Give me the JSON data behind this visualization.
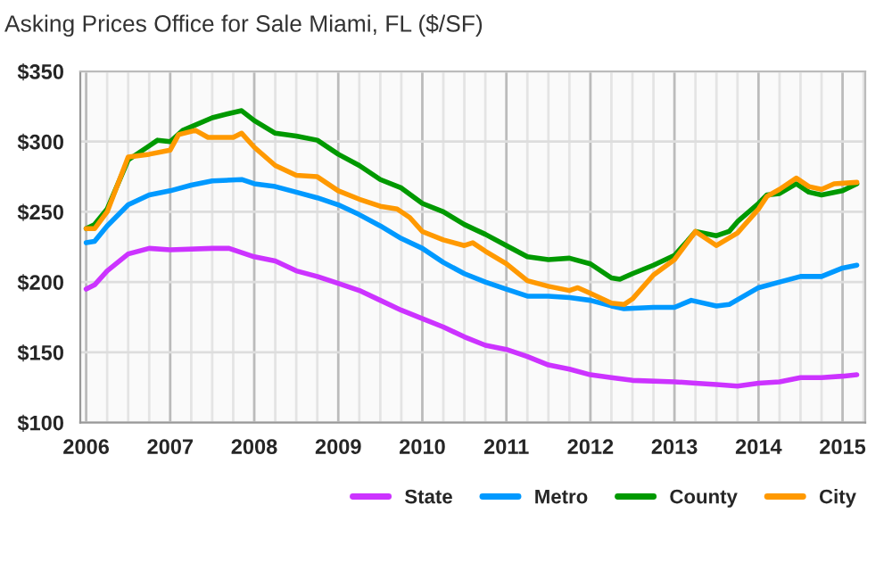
{
  "chart_data": {
    "type": "line",
    "title": "Asking Prices Office for Sale Miami, FL ($/SF)",
    "xlim": [
      2005.93,
      2015.27
    ],
    "xticks": [
      2006,
      {
        "value": 2006.25,
        "label": null
      },
      {
        "value": 2006.5,
        "label": null
      },
      {
        "value": 2006.75,
        "label": null
      },
      2007,
      {
        "value": 2007.25,
        "label": null
      },
      {
        "value": 2007.5,
        "label": null
      },
      {
        "value": 2007.75,
        "label": null
      },
      2008,
      {
        "value": 2008.25,
        "label": null
      },
      {
        "value": 2008.5,
        "label": null
      },
      {
        "value": 2008.75,
        "label": null
      },
      2009,
      {
        "value": 2009.25,
        "label": null
      },
      {
        "value": 2009.5,
        "label": null
      },
      {
        "value": 2009.75,
        "label": null
      },
      2010,
      {
        "value": 2010.25,
        "label": null
      },
      {
        "value": 2010.5,
        "label": null
      },
      {
        "value": 2010.75,
        "label": null
      },
      2011,
      {
        "value": 2011.25,
        "label": null
      },
      {
        "value": 2011.5,
        "label": null
      },
      {
        "value": 2011.75,
        "label": null
      },
      2012,
      {
        "value": 2012.25,
        "label": null
      },
      {
        "value": 2012.5,
        "label": null
      },
      {
        "value": 2012.75,
        "label": null
      },
      2013,
      {
        "value": 2013.25,
        "label": null
      },
      {
        "value": 2013.5,
        "label": null
      },
      {
        "value": 2013.75,
        "label": null
      },
      2014,
      {
        "value": 2014.25,
        "label": null
      },
      {
        "value": 2014.5,
        "label": null
      },
      {
        "value": 2014.75,
        "label": null
      },
      2015,
      {
        "value": 2015.25,
        "label": null
      }
    ],
    "ylim": [
      100,
      350
    ],
    "yticks": [
      {
        "value": 100,
        "label": "$100"
      },
      {
        "value": 150,
        "label": "$150"
      },
      {
        "value": 200,
        "label": "$200"
      },
      {
        "value": 250,
        "label": "$250"
      },
      {
        "value": 300,
        "label": "$300"
      },
      {
        "value": 350,
        "label": "$350"
      }
    ],
    "grid": true,
    "legend": "bottom right",
    "marker": "none",
    "line_style": "solid",
    "series": [
      {
        "name": "State",
        "color": "#cc33ff",
        "x": [
          2006.0,
          2006.1,
          2006.25,
          2006.5,
          2006.75,
          2007.0,
          2007.5,
          2007.7,
          2008.0,
          2008.25,
          2008.5,
          2008.75,
          2009.0,
          2009.25,
          2009.5,
          2009.75,
          2010.0,
          2010.25,
          2010.5,
          2010.75,
          2011.0,
          2011.25,
          2011.5,
          2011.75,
          2012.0,
          2012.25,
          2012.5,
          2013.0,
          2013.25,
          2013.5,
          2013.75,
          2014.0,
          2014.25,
          2014.5,
          2014.75,
          2015.0,
          2015.17
        ],
        "values": [
          195,
          198,
          208,
          220,
          224,
          223,
          224,
          224,
          218,
          215,
          208,
          204,
          199,
          194,
          187,
          180,
          174,
          168,
          161,
          155,
          152,
          147,
          141,
          138,
          134,
          132,
          130,
          129,
          128,
          127,
          126,
          128,
          129,
          132,
          132,
          133,
          134
        ]
      },
      {
        "name": "Metro",
        "color": "#0099ff",
        "x": [
          2006.0,
          2006.1,
          2006.25,
          2006.5,
          2006.75,
          2007.0,
          2007.25,
          2007.5,
          2007.85,
          2008.0,
          2008.25,
          2008.5,
          2008.75,
          2009.0,
          2009.25,
          2009.5,
          2009.75,
          2010.0,
          2010.25,
          2010.5,
          2010.75,
          2011.0,
          2011.25,
          2011.5,
          2011.75,
          2012.0,
          2012.25,
          2012.4,
          2012.75,
          2013.0,
          2013.2,
          2013.5,
          2013.65,
          2014.0,
          2014.25,
          2014.5,
          2014.75,
          2015.0,
          2015.17
        ],
        "values": [
          228,
          229,
          240,
          255,
          262,
          265,
          269,
          272,
          273,
          270,
          268,
          264,
          260,
          255,
          248,
          240,
          231,
          224,
          214,
          206,
          200,
          195,
          190,
          190,
          189,
          187,
          183,
          181,
          182,
          182,
          187,
          183,
          184,
          196,
          200,
          204,
          204,
          210,
          212
        ]
      },
      {
        "name": "County",
        "color": "#009900",
        "x": [
          2006.0,
          2006.1,
          2006.25,
          2006.5,
          2006.75,
          2006.85,
          2007.0,
          2007.15,
          2007.5,
          2007.7,
          2007.85,
          2008.0,
          2008.25,
          2008.5,
          2008.75,
          2009.0,
          2009.25,
          2009.5,
          2009.75,
          2010.0,
          2010.25,
          2010.5,
          2010.75,
          2011.0,
          2011.25,
          2011.5,
          2011.75,
          2012.0,
          2012.25,
          2012.35,
          2012.5,
          2012.75,
          2013.0,
          2013.15,
          2013.25,
          2013.5,
          2013.65,
          2013.75,
          2014.0,
          2014.1,
          2014.25,
          2014.45,
          2014.6,
          2014.75,
          2015.0,
          2015.17
        ],
        "values": [
          238,
          241,
          252,
          287,
          297,
          301,
          300,
          308,
          317,
          320,
          322,
          315,
          306,
          304,
          301,
          291,
          283,
          273,
          267,
          256,
          250,
          241,
          234,
          226,
          218,
          216,
          217,
          213,
          203,
          202,
          206,
          212,
          219,
          229,
          236,
          233,
          236,
          243,
          256,
          262,
          263,
          270,
          264,
          262,
          265,
          270
        ]
      },
      {
        "name": "City",
        "color": "#ff9900",
        "x": [
          2006.0,
          2006.1,
          2006.25,
          2006.5,
          2006.75,
          2007.0,
          2007.1,
          2007.3,
          2007.45,
          2007.75,
          2007.85,
          2008.0,
          2008.25,
          2008.5,
          2008.75,
          2009.0,
          2009.25,
          2009.5,
          2009.7,
          2009.85,
          2010.0,
          2010.25,
          2010.5,
          2010.6,
          2010.75,
          2011.0,
          2011.25,
          2011.5,
          2011.75,
          2011.85,
          2012.0,
          2012.25,
          2012.4,
          2012.5,
          2012.75,
          2013.0,
          2013.25,
          2013.5,
          2013.75,
          2014.0,
          2014.1,
          2014.25,
          2014.45,
          2014.6,
          2014.75,
          2014.9,
          2015.17
        ],
        "values": [
          238,
          238,
          250,
          289,
          291,
          294,
          305,
          308,
          303,
          303,
          306,
          296,
          283,
          276,
          275,
          265,
          259,
          254,
          252,
          246,
          236,
          230,
          226,
          228,
          222,
          213,
          201,
          197,
          194,
          196,
          192,
          185,
          184,
          188,
          205,
          216,
          236,
          226,
          235,
          252,
          261,
          266,
          274,
          268,
          266,
          270,
          271
        ]
      }
    ]
  }
}
